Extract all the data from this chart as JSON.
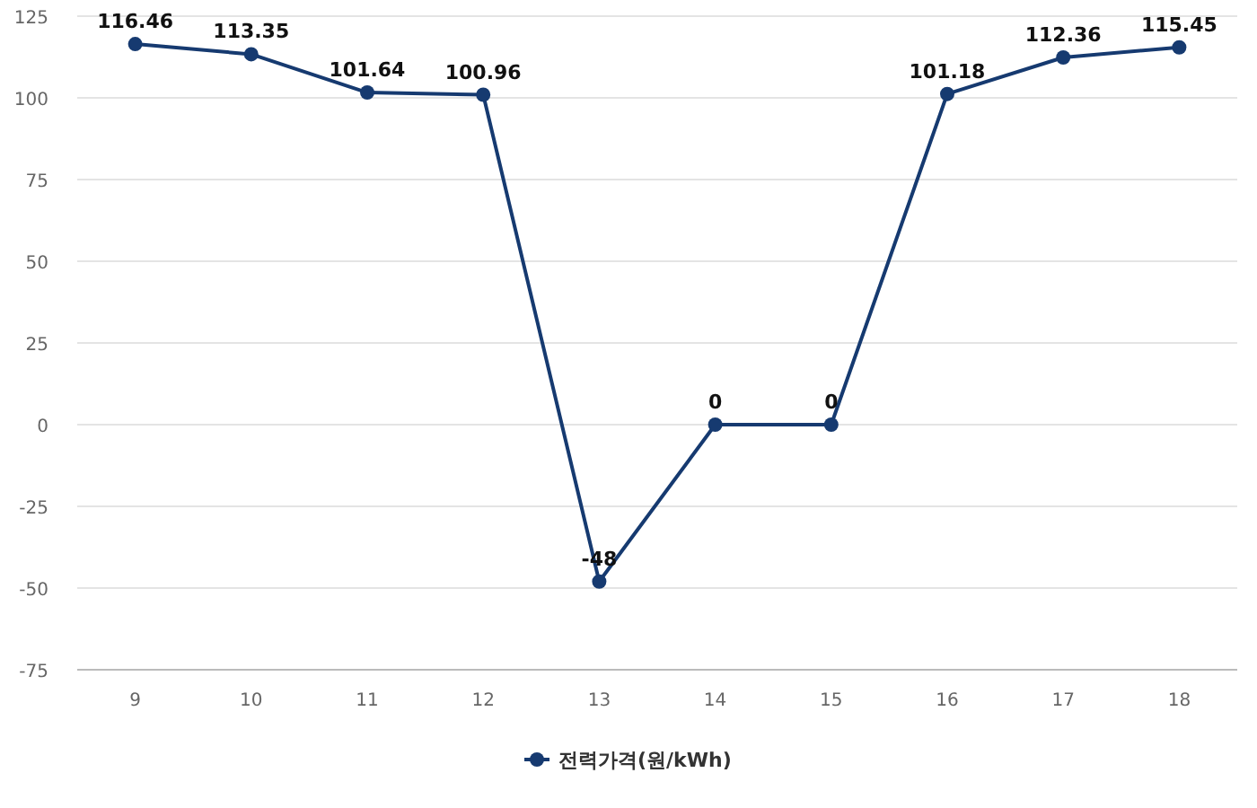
{
  "chart_data": {
    "type": "line",
    "categories": [
      "9",
      "10",
      "11",
      "12",
      "13",
      "14",
      "15",
      "16",
      "17",
      "18"
    ],
    "series": [
      {
        "name": "전력가격(원/kWh)",
        "color": "#163a70",
        "values": [
          116.46,
          113.35,
          101.64,
          100.96,
          -48,
          0,
          0,
          101.18,
          112.36,
          115.45
        ]
      }
    ],
    "ylim": [
      -75,
      125
    ],
    "yticks": [
      -75,
      -50,
      -25,
      0,
      25,
      50,
      75,
      100,
      125
    ],
    "grid": "y",
    "marker": "circle",
    "legend": "bottom",
    "data_labels": true
  }
}
